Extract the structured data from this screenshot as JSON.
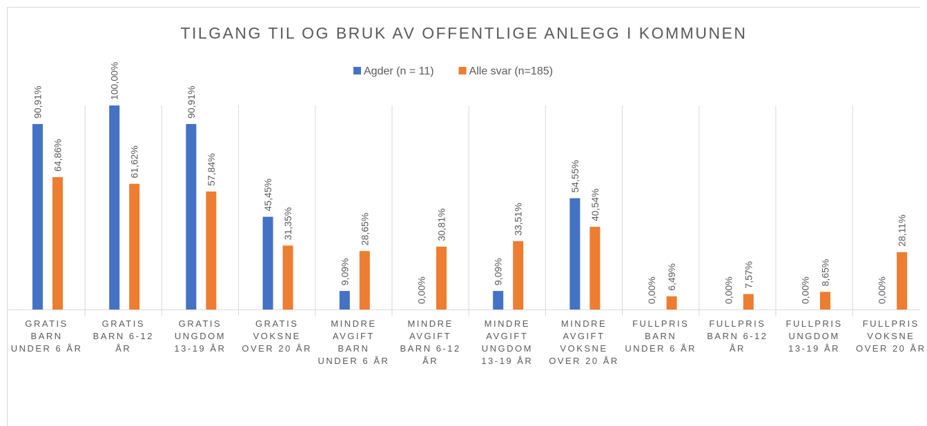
{
  "chart_data": {
    "type": "bar",
    "title": "TILGANG TIL OG BRUK AV OFFENTLIGE ANLEGG I KOMMUNEN",
    "categories": [
      "GRATIS BARN UNDER 6 ÅR",
      "GRATIS BARN 6-12 ÅR",
      "GRATIS UNGDOM 13-19 ÅR",
      "GRATIS VOKSNE OVER 20 ÅR",
      "MINDRE AVGIFT BARN UNDER 6 ÅR",
      "MINDRE AVGIFT BARN 6-12 ÅR",
      "MINDRE AVGIFT UNGDOM 13-19 ÅR",
      "MINDRE AVGIFT VOKSNE OVER 20 ÅR",
      "FULLPRIS BARN UNDER 6 ÅR",
      "FULLPRIS BARN 6-12 ÅR",
      "FULLPRIS UNGDOM 13-19 ÅR",
      "FULLPRIS VOKSNE OVER 20 ÅR"
    ],
    "series": [
      {
        "name": "Agder (n = 11)",
        "color": "#4472c4",
        "values": [
          90.91,
          100,
          90.91,
          45.45,
          9.09,
          0,
          9.09,
          54.55,
          0,
          0,
          0,
          0
        ],
        "value_labels": [
          "90,91%",
          "100,00%",
          "90,91%",
          "45,45%",
          "9,09%",
          "0,00%",
          "9,09%",
          "54,55%",
          "0,00%",
          "0,00%",
          "0,00%",
          "0,00%"
        ]
      },
      {
        "name": "Alle svar (n=185)",
        "color": "#ed7d31",
        "values": [
          64.86,
          61.62,
          57.84,
          31.35,
          28.65,
          30.81,
          33.51,
          40.54,
          6.49,
          7.57,
          8.65,
          28.11
        ],
        "value_labels": [
          "64,86%",
          "61,62%",
          "57,84%",
          "31,35%",
          "28,65%",
          "30,81%",
          "33,51%",
          "40,54%",
          "6,49%",
          "7,57%",
          "8,65%",
          "28,11%"
        ]
      }
    ],
    "ylim": [
      0,
      100
    ],
    "legend": "top"
  }
}
